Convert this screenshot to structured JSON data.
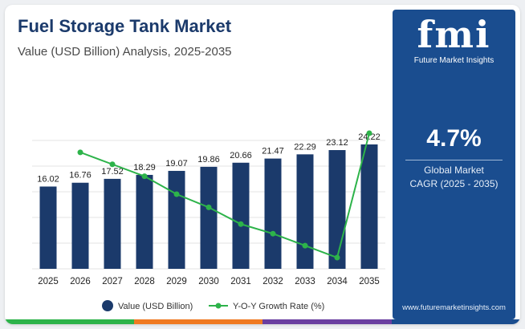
{
  "header": {
    "title": "Fuel Storage Tank Market",
    "subtitle": "Value (USD Billion) Analysis, 2025-2035"
  },
  "panel": {
    "logo_text": "fmi",
    "logo_subtitle": "Future Market Insights",
    "cagr_value": "4.7%",
    "cagr_label_line1": "Global Market",
    "cagr_label_line2": "CAGR (2025 - 2035)",
    "website": "www.futuremarketinsights.com",
    "background_color": "#1a4d8f"
  },
  "legend": {
    "value_label": "Value (USD Billion)",
    "growth_label": "Y-O-Y Growth Rate (%)"
  },
  "colors": {
    "bar": "#1b3a6b",
    "line": "#2db34a",
    "title": "#1b3a6b",
    "bottom_bar": [
      "#2db34a",
      "#f07a22",
      "#6a3fa0",
      "#1a4d8f"
    ]
  },
  "chart_data": {
    "type": "bar",
    "categories": [
      "2025",
      "2026",
      "2027",
      "2028",
      "2029",
      "2030",
      "2031",
      "2032",
      "2033",
      "2034",
      "2035"
    ],
    "series": [
      {
        "name": "Value (USD Billion)",
        "type": "bar",
        "values": [
          16.02,
          16.76,
          17.52,
          18.29,
          19.07,
          19.86,
          20.66,
          21.47,
          22.29,
          23.12,
          24.22
        ],
        "data_labels": [
          "16.02",
          "16.76",
          "17.52",
          "18.29",
          "19.07",
          "19.86",
          "20.66",
          "21.47",
          "22.29",
          "23.12",
          "24.22"
        ]
      },
      {
        "name": "Y-O-Y Growth Rate (%)",
        "type": "line",
        "axis": "secondary",
        "values": [
          null,
          4.6,
          4.5,
          4.4,
          4.25,
          4.14,
          4.0,
          3.92,
          3.82,
          3.72,
          4.76
        ]
      }
    ],
    "ylim": [
      0,
      25
    ],
    "y2lim": [
      3.6,
      4.8
    ],
    "grid": true,
    "legend_position": "bottom"
  }
}
